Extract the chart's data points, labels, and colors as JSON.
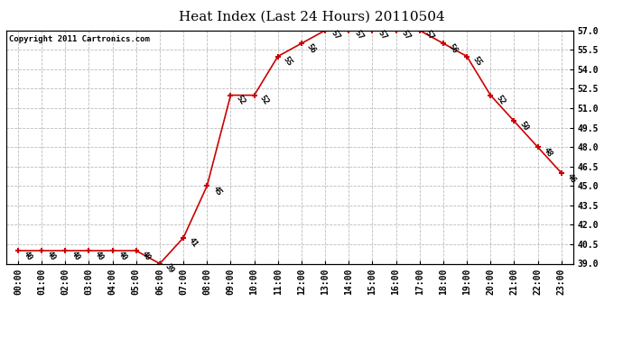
{
  "title": "Heat Index (Last 24 Hours) 20110504",
  "copyright": "Copyright 2011 Cartronics.com",
  "hours": [
    "00:00",
    "01:00",
    "02:00",
    "03:00",
    "04:00",
    "05:00",
    "06:00",
    "07:00",
    "08:00",
    "09:00",
    "10:00",
    "11:00",
    "12:00",
    "13:00",
    "14:00",
    "15:00",
    "16:00",
    "17:00",
    "18:00",
    "19:00",
    "20:00",
    "21:00",
    "22:00",
    "23:00"
  ],
  "values": [
    40,
    40,
    40,
    40,
    40,
    40,
    39,
    41,
    45,
    52,
    52,
    55,
    56,
    57,
    57,
    57,
    57,
    57,
    56,
    55,
    52,
    50,
    48,
    46
  ],
  "ylim": [
    39.0,
    57.0
  ],
  "yticks": [
    39.0,
    40.5,
    42.0,
    43.5,
    45.0,
    46.5,
    48.0,
    49.5,
    51.0,
    52.5,
    54.0,
    55.5,
    57.0
  ],
  "line_color": "#cc0000",
  "marker_color": "#cc0000",
  "bg_color": "#ffffff",
  "plot_bg_color": "#ffffff",
  "grid_color": "#bbbbbb",
  "title_fontsize": 11,
  "annot_fontsize": 6.5,
  "tick_fontsize": 7,
  "copyright_fontsize": 6.5
}
